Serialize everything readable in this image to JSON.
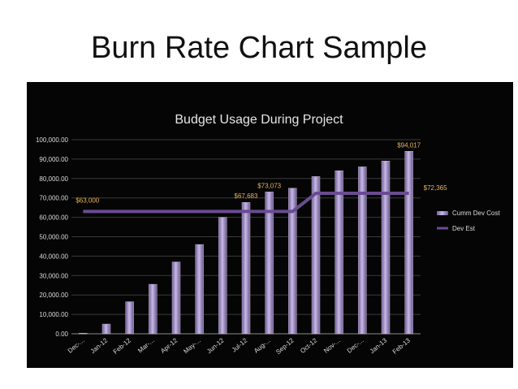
{
  "slide": {
    "title": "Burn Rate Chart Sample"
  },
  "chart_data": {
    "type": "bar",
    "title": "Budget Usage During Project",
    "xlabel": "",
    "ylabel": "",
    "ylim": [
      0,
      100000
    ],
    "y_ticks": [
      "0.00",
      "10,000.00",
      "20,000.00",
      "30,000.00",
      "40,000.00",
      "50,000.00",
      "60,000.00",
      "70,000.00",
      "80,000.00",
      "90,000.00",
      "100,000.00"
    ],
    "categories": [
      "Dec-...",
      "Jan-12",
      "Feb-12",
      "Mar-...",
      "Apr-12",
      "May-...",
      "Jun-12",
      "Jul-12",
      "Aug-...",
      "Sep-12",
      "Oct-12",
      "Nov-...",
      "Dec-...",
      "Jan-13",
      "Feb-13"
    ],
    "series": [
      {
        "name": "Cumm Dev Cost",
        "type": "bar",
        "color": "#9d8cc0",
        "values": [
          300,
          5000,
          16500,
          25500,
          37000,
          46000,
          60000,
          67683,
          73073,
          75000,
          81000,
          84000,
          86000,
          89000,
          94017
        ]
      },
      {
        "name": "Dev Est",
        "type": "line",
        "color": "#6a4b91",
        "values": [
          63000,
          63000,
          63000,
          63000,
          63000,
          63000,
          63000,
          63000,
          63000,
          63000,
          72365,
          72365,
          72365,
          72365,
          72365
        ]
      }
    ],
    "data_labels": [
      {
        "text": "$63,000",
        "series": 1,
        "index": 0
      },
      {
        "text": "$67,683",
        "series": 0,
        "index": 7
      },
      {
        "text": "$73,073",
        "series": 0,
        "index": 8
      },
      {
        "text": "$94,017",
        "series": 0,
        "index": 14
      },
      {
        "text": "$72,365",
        "series": 1,
        "index": 14
      }
    ],
    "legend_position": "right",
    "grid": true
  }
}
